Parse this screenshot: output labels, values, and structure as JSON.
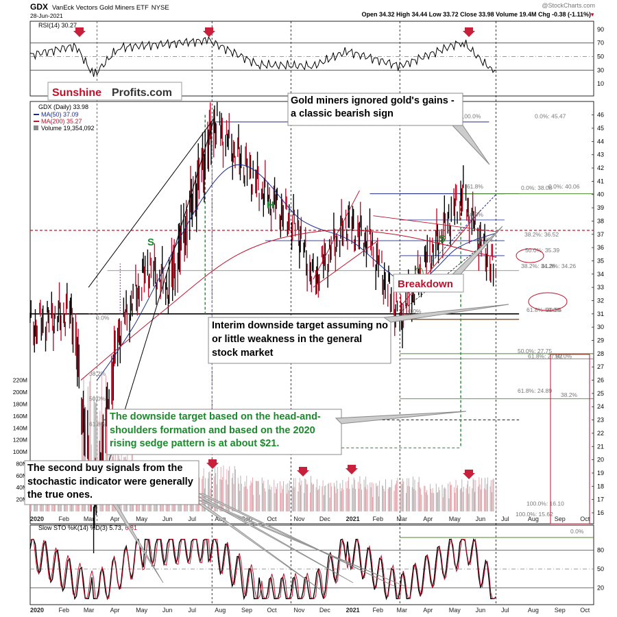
{
  "header": {
    "symbol": "GDX",
    "name": "VanEck Vectors Gold Miners ETF",
    "exchange": "NYSE",
    "date": "28-Jun-2021",
    "ohlc": "Open 34.32  High 34.44  Low 33.72  Close 33.98  Volume 19.4M  Chg -0.38 (-1.11%)",
    "change_arrow": "▼",
    "source": "@StockCharts.com"
  },
  "brand": {
    "part1": "Sunshine",
    "part2": "Profits.com"
  },
  "legend": {
    "price": "GDX (Daily) 33.98",
    "ma50": "MA(50) 37.09",
    "ma200": "MA(200) 35.27",
    "volume": "Volume 19,354,092"
  },
  "rsi": {
    "label": "RSI(14) 30.27",
    "ticks": [
      "90",
      "70",
      "50",
      "30",
      "10"
    ]
  },
  "stoch": {
    "label_main": "Slow STO %K(14) %D(3) 5.73,",
    "label_d": "6.81",
    "ticks": [
      "80",
      "50",
      "20"
    ],
    "fib_label": "0.0%"
  },
  "x_axis": {
    "labels": [
      "2020",
      "Feb",
      "Mar",
      "Apr",
      "May",
      "Jun",
      "Jul",
      "Aug",
      "Sep",
      "Oct",
      "Nov",
      "Dec",
      "2021",
      "Feb",
      "Mar",
      "Apr",
      "May",
      "Jun",
      "Jul",
      "Aug",
      "Sep",
      "Oct"
    ]
  },
  "price_ticks": [
    "46",
    "45",
    "44",
    "43",
    "42",
    "41",
    "40",
    "39",
    "38",
    "37",
    "36",
    "35",
    "34",
    "33",
    "32",
    "31",
    "30",
    "29",
    "28",
    "27",
    "26",
    "25",
    "24",
    "23",
    "22",
    "21",
    "20",
    "19",
    "18",
    "17",
    "16"
  ],
  "volume_ticks": [
    "220M",
    "200M",
    "180M",
    "160M",
    "140M",
    "120M",
    "100M",
    "80M",
    "60M",
    "40M",
    "20M"
  ],
  "fib_labels": [
    "100.0%",
    "0.0%: 45.47",
    "61.8%",
    "0.0%: 38.08",
    "0.0%: 40.06",
    "50.0%",
    "38.2%: 36.52",
    "38.2%",
    "50.0%: 35.39",
    "38.2%: 34.26",
    "61.8%: 34.26",
    "0.0%",
    "50.0%",
    "61.8%: 30.59",
    "50.0%: 27.75",
    "61.8%: 27.82",
    "50.0%",
    "61.8%: 24.89",
    "38.2%",
    "100.0%: 16.10",
    "100.0%: 15.62",
    "0.0%",
    "38.2%",
    "50.0%",
    "61.8%"
  ],
  "pattern_labels": {
    "s1": "S",
    "h": "H",
    "s2": "S"
  },
  "annotations": {
    "gold_miners": "Gold miners ignored gold's gains - a classic bearish sign",
    "breakdown": "Breakdown",
    "interim": "Interim downside target assuming no or little weakness in the general stock market",
    "target": "The downside target based on the head-and-shoulders formation and based on the 2020 rising sedge pattern is at about $21.",
    "second_buy": "The second buy signals from the stochastic indicator were generally the true ones."
  },
  "colors": {
    "up": "#000000",
    "down": "#c0102b",
    "ma50": "#1a2a8c",
    "ma200": "#c0102b",
    "fib_green": "#4a8a2a",
    "arrow": "#c8203a",
    "target_green": "#1a8a2a"
  },
  "chart_data": [
    {
      "type": "line",
      "title": "GDX VanEck Vectors Gold Miners ETF NYSE",
      "series": [
        {
          "name": "GDX (Daily) 33.98",
          "x": [
            "2020-01-02",
            "2020-02-20",
            "2020-03-16",
            "2020-04-14",
            "2020-05-18",
            "2020-06-12",
            "2020-08-04",
            "2020-09-10",
            "2020-10-02",
            "2020-11-09",
            "2020-11-27",
            "2021-01-05",
            "2021-02-01",
            "2021-03-08",
            "2021-04-01",
            "2021-05-20",
            "2021-06-10",
            "2021-06-28"
          ],
          "values": [
            30,
            31.2,
            16.1,
            29.5,
            34.5,
            33,
            45.47,
            42,
            40,
            37.5,
            33.5,
            37.8,
            36.5,
            30.59,
            34,
            40.06,
            36.5,
            33.98
          ]
        },
        {
          "name": "MA(50) 37.09",
          "x": [
            "2020-03-20",
            "2020-05-01",
            "2020-08-20",
            "2020-11-15",
            "2021-01-10",
            "2021-03-20",
            "2021-05-15",
            "2021-06-28"
          ],
          "values": [
            26,
            30,
            42,
            38,
            36.5,
            33.3,
            36,
            37.09
          ]
        },
        {
          "name": "MA(200) 35.27",
          "x": [
            "2020-03-01",
            "2020-06-01",
            "2020-09-01",
            "2020-12-01",
            "2021-03-01",
            "2021-06-28"
          ],
          "values": [
            26,
            31,
            35.5,
            37.2,
            37,
            35.27
          ]
        }
      ],
      "xlabel": "",
      "ylabel": "",
      "ylim": [
        16,
        46.5
      ]
    },
    {
      "type": "line",
      "title": "RSI(14) 30.27",
      "series": [
        {
          "name": "RSI(14) 30.27",
          "x": [
            "2020-01-02",
            "2020-02-24",
            "2020-03-16",
            "2020-04-14",
            "2020-07-28",
            "2020-09-24",
            "2020-11-27",
            "2021-01-05",
            "2021-03-08",
            "2021-05-20",
            "2021-06-21",
            "2021-06-28"
          ],
          "values": [
            52,
            66,
            22,
            63,
            74,
            38,
            36,
            58,
            36,
            72,
            32,
            30.27
          ]
        }
      ],
      "ylim": [
        0,
        100
      ]
    },
    {
      "type": "line",
      "title": "Slow STO %K(14) %D(3) 5.73, 6.81",
      "series": [
        {
          "name": "%K(14)",
          "x": [
            "2020-01-02",
            "2020-03-16",
            "2020-05-15",
            "2020-07-28",
            "2020-09-25",
            "2020-11-27",
            "2021-01-06",
            "2021-03-08",
            "2021-05-25",
            "2021-06-28"
          ],
          "values": [
            82,
            10,
            85,
            92,
            8,
            10,
            85,
            12,
            92,
            5.73
          ]
        },
        {
          "name": "%D(3)",
          "x": [
            "2020-01-02",
            "2020-03-18",
            "2020-05-18",
            "2020-07-30",
            "2020-09-28",
            "2020-11-30",
            "2021-01-08",
            "2021-03-10",
            "2021-05-27",
            "2021-06-28"
          ],
          "values": [
            80,
            14,
            82,
            88,
            12,
            14,
            82,
            15,
            88,
            6.81
          ]
        }
      ],
      "ylim": [
        0,
        100
      ]
    },
    {
      "type": "bar",
      "title": "Volume 19,354,092",
      "x": [
        "2020-01",
        "2020-02",
        "2020-03",
        "2020-04",
        "2020-05",
        "2020-06",
        "2020-07",
        "2020-08",
        "2020-09",
        "2020-10",
        "2020-11",
        "2020-12",
        "2021-01",
        "2021-02",
        "2021-03",
        "2021-04",
        "2021-05",
        "2021-06"
      ],
      "values": [
        40,
        45,
        160,
        90,
        55,
        45,
        55,
        60,
        45,
        40,
        45,
        40,
        45,
        40,
        45,
        35,
        40,
        45
      ],
      "ylim": [
        0,
        230
      ]
    }
  ]
}
